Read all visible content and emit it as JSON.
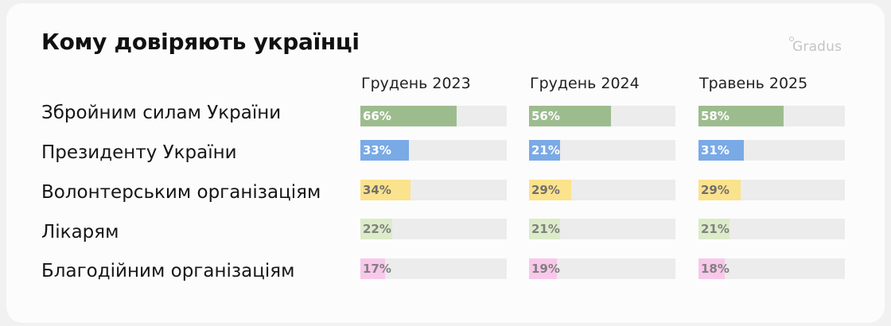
{
  "title": "Кому довіряють українці",
  "brand": "Gradus",
  "chart_data": {
    "type": "bar",
    "title": "Кому довіряють українці",
    "unit": "%",
    "xlim": [
      0,
      100
    ],
    "periods": [
      "Грудень 2023",
      "Грудень 2024",
      "Травень 2025"
    ],
    "categories": [
      "Збройним силам України",
      "Президенту України",
      "Волонтерським організаціям",
      "Лікарям",
      "Благодійним організаціям"
    ],
    "category_colors": [
      "#9dbc8e",
      "#7aaae6",
      "#fbe28c",
      "#dcebc9",
      "#f8c8ea"
    ],
    "label_colors": [
      "#ffffff",
      "#ffffff",
      "#707070",
      "#808080",
      "#808080"
    ],
    "track_color": "#ececec",
    "series": [
      {
        "name": "Грудень 2023",
        "values": [
          66,
          33,
          34,
          22,
          17
        ],
        "labels": [
          "66%",
          "33%",
          "34%",
          "22%",
          "17%"
        ]
      },
      {
        "name": "Грудень 2024",
        "values": [
          56,
          21,
          29,
          21,
          19
        ],
        "labels": [
          "56%",
          "21%",
          "29%",
          "21%",
          "19%"
        ]
      },
      {
        "name": "Травень 2025",
        "values": [
          58,
          31,
          29,
          21,
          18
        ],
        "labels": [
          "58%",
          "31%",
          "29%",
          "21%",
          "18%"
        ]
      }
    ]
  }
}
